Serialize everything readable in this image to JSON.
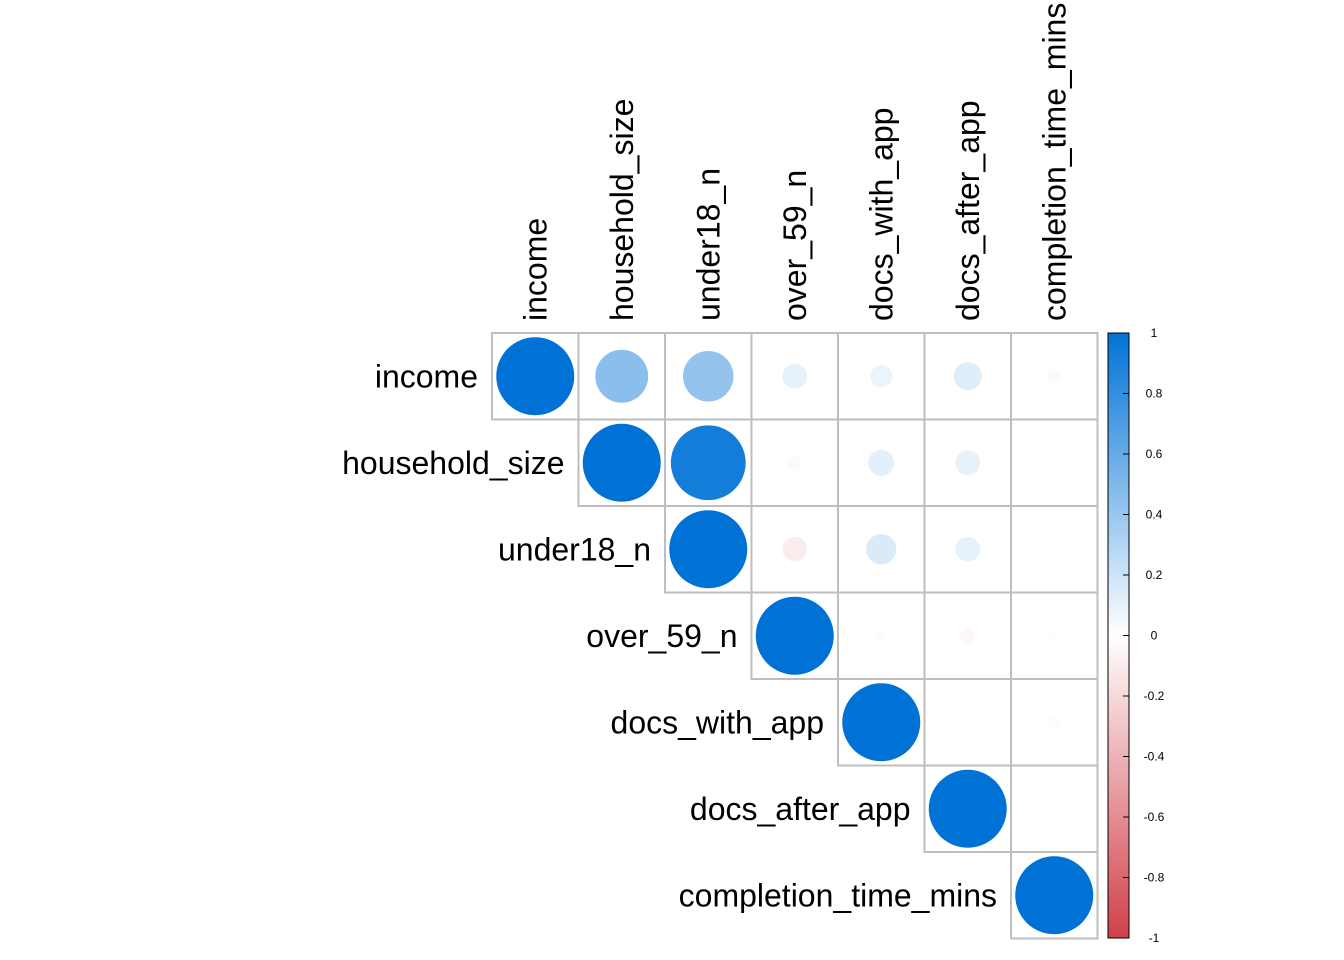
{
  "chart_data": {
    "type": "heatmap",
    "subtype": "correlation-matrix-upper-triangle-circles",
    "variables": [
      "income",
      "household_size",
      "under18_n",
      "over_59_n",
      "docs_with_app",
      "docs_after_app",
      "completion_time_mins"
    ],
    "matrix": [
      [
        1.0,
        0.46,
        0.42,
        0.1,
        0.08,
        0.13,
        0.03
      ],
      [
        0.46,
        1.0,
        0.92,
        0.03,
        0.11,
        0.1,
        0.0
      ],
      [
        0.42,
        0.92,
        1.0,
        -0.1,
        0.15,
        0.1,
        0.0
      ],
      [
        0.1,
        0.03,
        -0.1,
        1.0,
        -0.02,
        -0.04,
        -0.01
      ],
      [
        0.08,
        0.11,
        0.15,
        -0.02,
        1.0,
        0.0,
        0.02
      ],
      [
        0.13,
        0.1,
        0.1,
        -0.04,
        0.0,
        1.0,
        0.0
      ],
      [
        0.03,
        0.0,
        0.0,
        -0.01,
        0.02,
        0.0,
        1.0
      ]
    ],
    "colorbar": {
      "ticks": [
        "1",
        "0.8",
        "0.6",
        "0.4",
        "0.2",
        "0",
        "-0.2",
        "-0.4",
        "-0.6",
        "-0.8",
        "-1"
      ],
      "range": [
        -1,
        1
      ],
      "position": "right"
    },
    "colors": {
      "positive": "#0072D6",
      "negative": "#D1404A",
      "neutral": "#FFFFFF",
      "grid": "#BEBEBE"
    },
    "title": "",
    "xlabel": "",
    "ylabel": ""
  }
}
